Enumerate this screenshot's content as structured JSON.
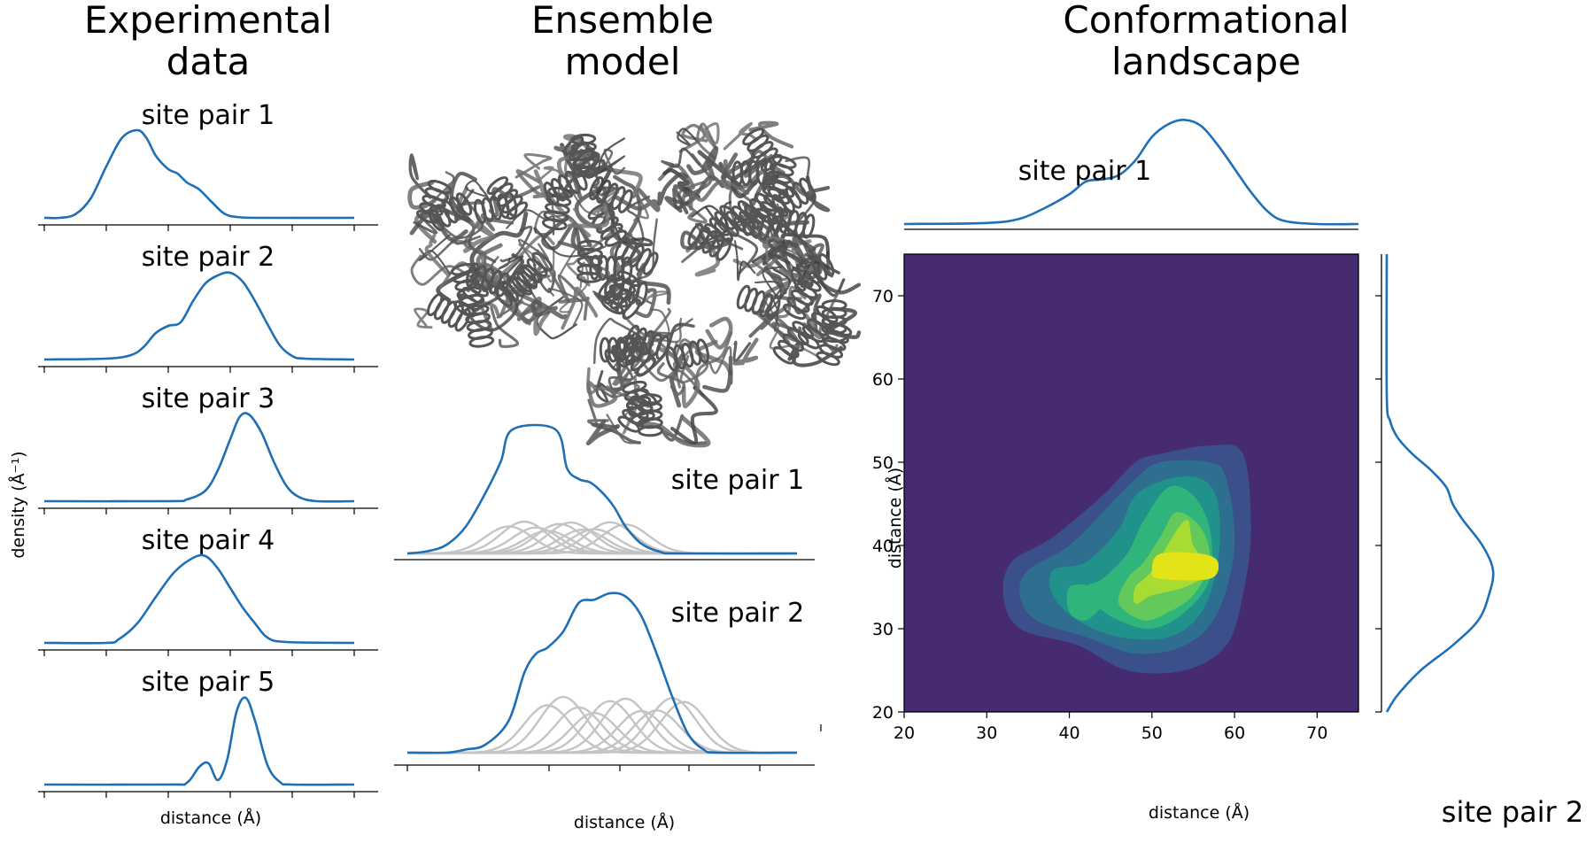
{
  "columns": {
    "left": {
      "title_line1": "Experimental",
      "title_line2": "data"
    },
    "middle": {
      "title_line1": "Ensemble",
      "title_line2": "model"
    },
    "right": {
      "title_line1": "Conformational",
      "title_line2": "landscape"
    }
  },
  "colors": {
    "curve": "#1f6fb4",
    "component": "#c4c4c4",
    "structure": "#555555",
    "heatmap_levels": [
      "#472b70",
      "#3b4f8a",
      "#2e6e8e",
      "#21918c",
      "#2fb47c",
      "#62c95a",
      "#a9dc32",
      "#e2e418"
    ]
  },
  "chart_data": [
    {
      "type": "line",
      "panel": "experimental",
      "ylabel": "density (Å⁻¹)",
      "xlabel": "distance (Å)",
      "x_range": [
        0,
        100
      ],
      "note_ticks": "x ticks at 0,20,40,60,80,100 (unlabeled)",
      "series": [
        {
          "name": "site pair 1",
          "values": [
            [
              0,
              0.0
            ],
            [
              5,
              0.0
            ],
            [
              10,
              0.04
            ],
            [
              15,
              0.22
            ],
            [
              20,
              0.58
            ],
            [
              25,
              0.9
            ],
            [
              30,
              0.99
            ],
            [
              33,
              0.9
            ],
            [
              36,
              0.7
            ],
            [
              40,
              0.55
            ],
            [
              43,
              0.5
            ],
            [
              46,
              0.4
            ],
            [
              50,
              0.32
            ],
            [
              54,
              0.18
            ],
            [
              58,
              0.05
            ],
            [
              62,
              0.01
            ],
            [
              70,
              0.0
            ],
            [
              100,
              0.0
            ]
          ]
        },
        {
          "name": "site pair 2",
          "values": [
            [
              0,
              0.0
            ],
            [
              20,
              0.01
            ],
            [
              28,
              0.05
            ],
            [
              32,
              0.14
            ],
            [
              36,
              0.3
            ],
            [
              40,
              0.38
            ],
            [
              44,
              0.42
            ],
            [
              48,
              0.66
            ],
            [
              52,
              0.86
            ],
            [
              56,
              0.95
            ],
            [
              60,
              0.98
            ],
            [
              64,
              0.88
            ],
            [
              68,
              0.66
            ],
            [
              72,
              0.4
            ],
            [
              76,
              0.16
            ],
            [
              80,
              0.04
            ],
            [
              84,
              0.01
            ],
            [
              100,
              0.0
            ]
          ]
        },
        {
          "name": "site pair 3",
          "values": [
            [
              0,
              0.0
            ],
            [
              40,
              0.0
            ],
            [
              46,
              0.02
            ],
            [
              52,
              0.12
            ],
            [
              56,
              0.35
            ],
            [
              60,
              0.7
            ],
            [
              63,
              0.95
            ],
            [
              66,
              0.98
            ],
            [
              70,
              0.78
            ],
            [
              74,
              0.45
            ],
            [
              78,
              0.18
            ],
            [
              82,
              0.05
            ],
            [
              88,
              0.0
            ],
            [
              100,
              0.0
            ]
          ]
        },
        {
          "name": "site pair 4",
          "values": [
            [
              0,
              0.0
            ],
            [
              20,
              0.0
            ],
            [
              24,
              0.04
            ],
            [
              30,
              0.22
            ],
            [
              36,
              0.52
            ],
            [
              42,
              0.8
            ],
            [
              48,
              0.96
            ],
            [
              52,
              0.98
            ],
            [
              56,
              0.84
            ],
            [
              60,
              0.62
            ],
            [
              64,
              0.4
            ],
            [
              68,
              0.22
            ],
            [
              72,
              0.06
            ],
            [
              78,
              0.01
            ],
            [
              100,
              0.0
            ]
          ]
        },
        {
          "name": "site pair 5",
          "values": [
            [
              0,
              0.0
            ],
            [
              40,
              0.0
            ],
            [
              46,
              0.02
            ],
            [
              50,
              0.2
            ],
            [
              53,
              0.24
            ],
            [
              56,
              0.05
            ],
            [
              59,
              0.28
            ],
            [
              62,
              0.82
            ],
            [
              65,
              0.98
            ],
            [
              68,
              0.72
            ],
            [
              72,
              0.22
            ],
            [
              76,
              0.03
            ],
            [
              80,
              0.0
            ],
            [
              100,
              0.0
            ]
          ]
        }
      ]
    },
    {
      "type": "line",
      "panel": "ensemble-model",
      "xlabel": "distance (Å)",
      "x_range": [
        0,
        100
      ],
      "note_ticks": "x ticks at 0,10,20,...,100 (unlabeled)",
      "series": [
        {
          "name": "site pair 1",
          "values": [
            [
              0,
              0.0
            ],
            [
              5,
              0.03
            ],
            [
              10,
              0.12
            ],
            [
              15,
              0.38
            ],
            [
              20,
              0.85
            ],
            [
              24,
              1.3
            ],
            [
              27,
              1.75
            ],
            [
              38,
              1.75
            ],
            [
              41,
              1.2
            ],
            [
              44,
              1.05
            ],
            [
              47,
              1.0
            ],
            [
              50,
              0.86
            ],
            [
              53,
              0.66
            ],
            [
              56,
              0.38
            ],
            [
              60,
              0.14
            ],
            [
              65,
              0.02
            ],
            [
              70,
              0.0
            ],
            [
              100,
              0.0
            ]
          ]
        },
        {
          "name": "site pair 2",
          "values": [
            [
              0,
              0.0
            ],
            [
              10,
              0.0
            ],
            [
              15,
              0.02
            ],
            [
              20,
              0.05
            ],
            [
              26,
              0.2
            ],
            [
              30,
              0.5
            ],
            [
              33,
              0.62
            ],
            [
              36,
              0.66
            ],
            [
              40,
              0.76
            ],
            [
              44,
              0.94
            ],
            [
              48,
              0.96
            ],
            [
              52,
              1.0
            ],
            [
              56,
              0.98
            ],
            [
              60,
              0.86
            ],
            [
              64,
              0.62
            ],
            [
              68,
              0.35
            ],
            [
              72,
              0.12
            ],
            [
              76,
              0.02
            ],
            [
              80,
              0.0
            ],
            [
              100,
              0.0
            ]
          ]
        }
      ],
      "components": [
        {
          "site": "site pair 1",
          "centers": [
            26,
            30,
            33,
            36,
            39,
            42,
            45,
            48,
            52,
            56
          ],
          "amplitude_fraction": 0.45
        },
        {
          "site": "site pair 2",
          "centers": [
            36,
            40,
            44,
            48,
            52,
            56,
            60,
            64,
            68,
            71
          ],
          "amplitude_fraction": 0.35
        }
      ]
    },
    {
      "type": "heatmap",
      "panel": "conformational-landscape",
      "xlabel": "distance (Å)",
      "ylabel": "distance (Å)",
      "xlim": [
        20,
        75
      ],
      "ylim": [
        20,
        75
      ],
      "xticks": [
        "20",
        "30",
        "40",
        "50",
        "60",
        "70"
      ],
      "yticks": [
        "20",
        "30",
        "40",
        "50",
        "60",
        "70"
      ],
      "top_marginal_label": "site pair 1",
      "right_marginal_label": "site pair 2",
      "top_marginal": [
        [
          20,
          0.0
        ],
        [
          30,
          0.01
        ],
        [
          34,
          0.05
        ],
        [
          37,
          0.15
        ],
        [
          40,
          0.28
        ],
        [
          42,
          0.4
        ],
        [
          44,
          0.42
        ],
        [
          46,
          0.46
        ],
        [
          48,
          0.6
        ],
        [
          50,
          0.82
        ],
        [
          52,
          0.94
        ],
        [
          54,
          0.98
        ],
        [
          56,
          0.92
        ],
        [
          58,
          0.74
        ],
        [
          60,
          0.52
        ],
        [
          62,
          0.3
        ],
        [
          64,
          0.12
        ],
        [
          66,
          0.03
        ],
        [
          70,
          0.0
        ],
        [
          75,
          0.0
        ]
      ],
      "right_marginal": [
        [
          20,
          0.0
        ],
        [
          22,
          0.1
        ],
        [
          25,
          0.32
        ],
        [
          28,
          0.62
        ],
        [
          31,
          0.86
        ],
        [
          34,
          0.96
        ],
        [
          37,
          1.0
        ],
        [
          40,
          0.9
        ],
        [
          43,
          0.72
        ],
        [
          45,
          0.62
        ],
        [
          47,
          0.56
        ],
        [
          49,
          0.42
        ],
        [
          51,
          0.24
        ],
        [
          53,
          0.1
        ],
        [
          55,
          0.03
        ],
        [
          58,
          0.0
        ],
        [
          75,
          0.0
        ]
      ],
      "contour_levels": [
        [
          [
            51,
            51
          ],
          [
            57,
            52
          ],
          [
            61,
            51
          ],
          [
            62,
            42
          ],
          [
            61,
            34
          ],
          [
            59,
            28
          ],
          [
            54,
            25
          ],
          [
            47,
            25
          ],
          [
            41,
            28
          ],
          [
            34,
            30
          ],
          [
            32,
            34
          ],
          [
            33,
            38
          ],
          [
            38,
            41
          ],
          [
            44,
            46
          ],
          [
            48,
            50
          ]
        ],
        [
          [
            51,
            50
          ],
          [
            57,
            50
          ],
          [
            59,
            48
          ],
          [
            60,
            40
          ],
          [
            58,
            32
          ],
          [
            54,
            28
          ],
          [
            48,
            27
          ],
          [
            42,
            29
          ],
          [
            36,
            31
          ],
          [
            34,
            34
          ],
          [
            35,
            37
          ],
          [
            40,
            40
          ],
          [
            45,
            45
          ],
          [
            48,
            48
          ]
        ],
        [
          [
            52,
            48
          ],
          [
            56,
            48
          ],
          [
            58,
            45
          ],
          [
            58,
            38
          ],
          [
            56,
            32
          ],
          [
            52,
            29
          ],
          [
            46,
            29
          ],
          [
            41,
            31
          ],
          [
            38,
            34
          ],
          [
            38,
            37
          ],
          [
            42,
            38
          ],
          [
            46,
            42
          ],
          [
            48,
            46
          ]
        ],
        [
          [
            52,
            47
          ],
          [
            55,
            46
          ],
          [
            57,
            42
          ],
          [
            57,
            36
          ],
          [
            54,
            32
          ],
          [
            50,
            30
          ],
          [
            46,
            31
          ],
          [
            43,
            33
          ],
          [
            42,
            35
          ],
          [
            44,
            36
          ],
          [
            47,
            39
          ],
          [
            49,
            43
          ]
        ],
        [
          [
            53,
            44
          ],
          [
            56,
            42
          ],
          [
            57,
            38
          ],
          [
            55,
            34
          ],
          [
            52,
            32
          ],
          [
            49,
            31
          ],
          [
            46,
            33
          ],
          [
            47,
            36
          ],
          [
            49,
            38
          ],
          [
            51,
            41
          ]
        ],
        [
          [
            54,
            43
          ],
          [
            55,
            40
          ],
          [
            57,
            37
          ],
          [
            54,
            35
          ],
          [
            50,
            34
          ],
          [
            48,
            33
          ],
          [
            48,
            35
          ],
          [
            50,
            37
          ]
        ],
        [
          [
            51,
            39
          ],
          [
            56,
            39
          ],
          [
            58,
            38
          ],
          [
            57,
            36
          ],
          [
            51,
            36
          ],
          [
            50,
            37
          ]
        ]
      ],
      "secondary_blob": [
        [
          40,
          35
        ],
        [
          43,
          35
        ],
        [
          44,
          33
        ],
        [
          42,
          31
        ],
        [
          40,
          32
        ]
      ]
    }
  ]
}
